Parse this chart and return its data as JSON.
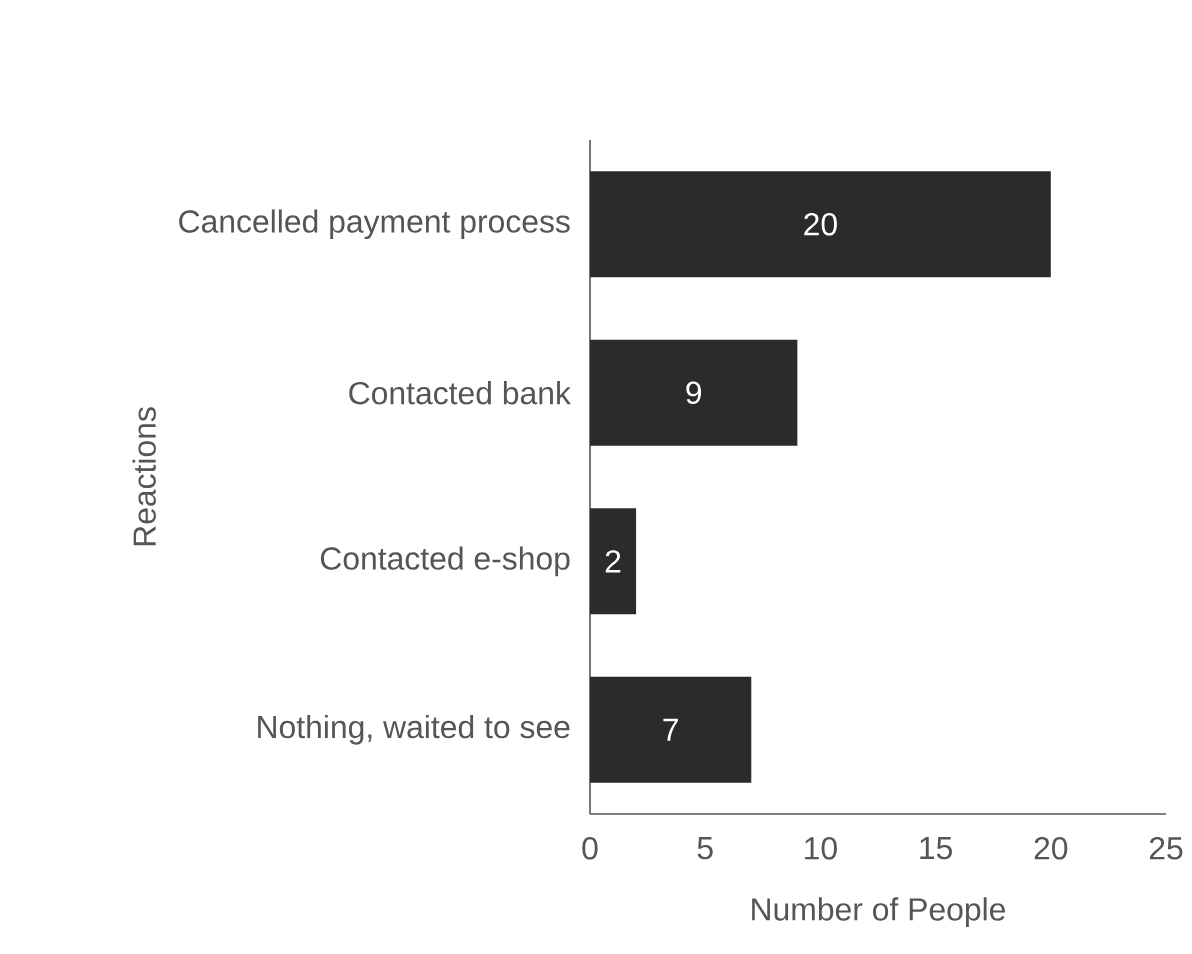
{
  "chart_data": {
    "type": "bar",
    "orientation": "horizontal",
    "categories": [
      "Cancelled payment process",
      "Contacted bank",
      "Contacted e-shop",
      "Nothing, waited to see"
    ],
    "values": [
      20,
      9,
      2,
      7
    ],
    "color": "#2b2b2b",
    "xlabel": "Number of People",
    "ylabel": "Reactions",
    "xlim": [
      0,
      25
    ],
    "xticks": [
      0,
      5,
      10,
      15,
      20,
      25
    ],
    "data_labels": true
  }
}
